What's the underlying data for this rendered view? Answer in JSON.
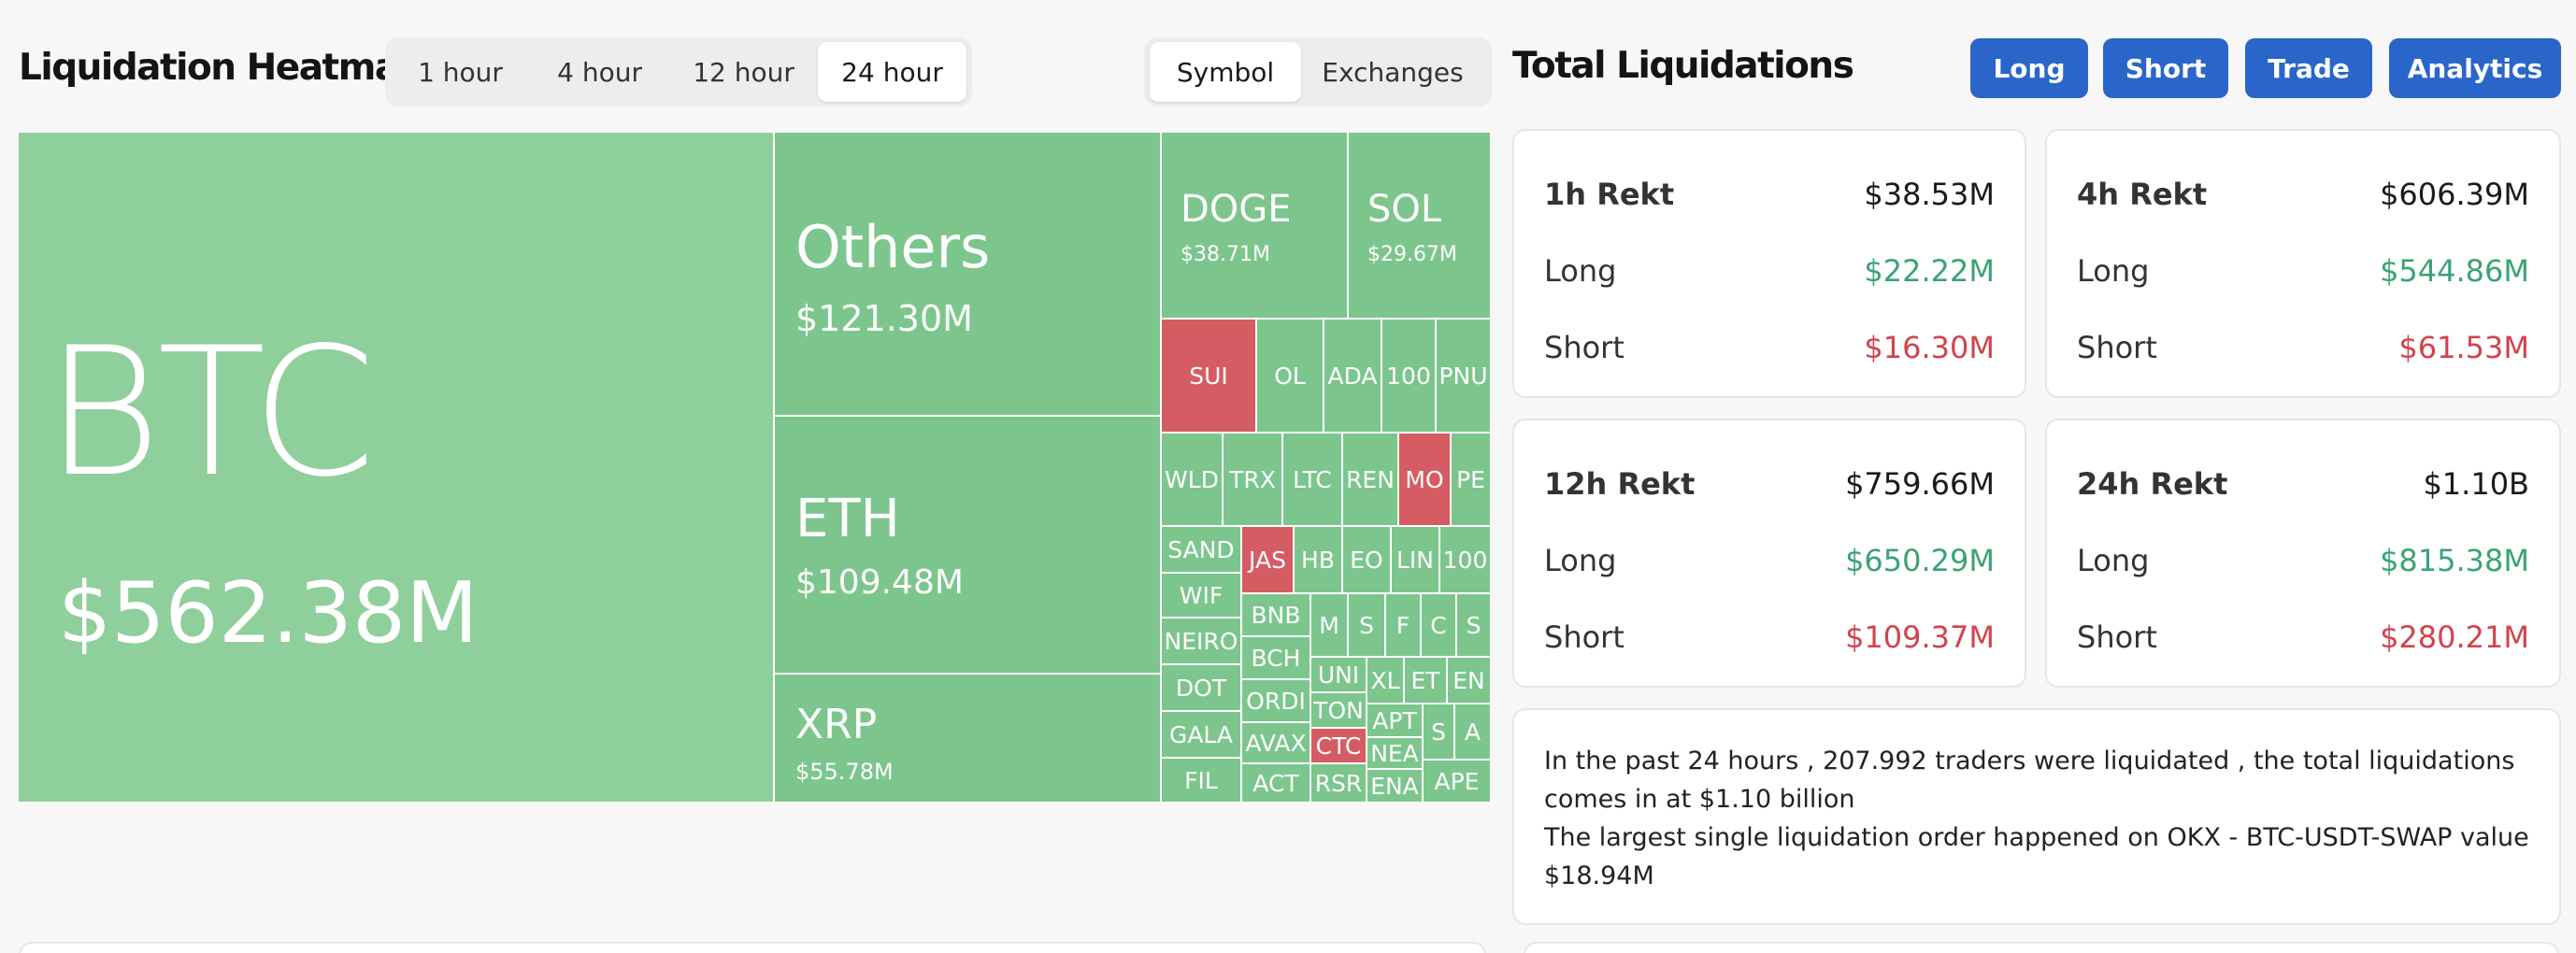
{
  "heatmap": {
    "title": "Liquidation Heatmap",
    "time_tabs": [
      "1 hour",
      "4 hour",
      "12 hour",
      "24 hour"
    ],
    "active_time_tab": "24 hour",
    "view_tabs": [
      "Symbol",
      "Exchanges"
    ],
    "active_view_tab": "Symbol",
    "big_tiles": [
      {
        "symbol": "BTC",
        "value": "$562.38M",
        "side": "long"
      },
      {
        "symbol": "Others",
        "value": "$121.30M",
        "side": "long"
      },
      {
        "symbol": "ETH",
        "value": "$109.48M",
        "side": "long"
      },
      {
        "symbol": "XRP",
        "value": "$55.78M",
        "side": "long"
      },
      {
        "symbol": "DOGE",
        "value": "$38.71M",
        "side": "long"
      },
      {
        "symbol": "SOL",
        "value": "$29.67M",
        "side": "long"
      }
    ],
    "small_tiles": [
      {
        "symbol": "SUI",
        "side": "short"
      },
      {
        "symbol": "OL",
        "side": "long"
      },
      {
        "symbol": "ADA",
        "side": "long"
      },
      {
        "symbol": "100",
        "side": "long"
      },
      {
        "symbol": "PNU",
        "side": "long"
      },
      {
        "symbol": "WLD",
        "side": "long"
      },
      {
        "symbol": "TRX",
        "side": "long"
      },
      {
        "symbol": "LTC",
        "side": "long"
      },
      {
        "symbol": "REN",
        "side": "long"
      },
      {
        "symbol": "MO",
        "side": "short"
      },
      {
        "symbol": "PE",
        "side": "long"
      },
      {
        "symbol": "SAND",
        "side": "long"
      },
      {
        "symbol": "JAS",
        "side": "short"
      },
      {
        "symbol": "HB",
        "side": "long"
      },
      {
        "symbol": "EO",
        "side": "long"
      },
      {
        "symbol": "LIN",
        "side": "long"
      },
      {
        "symbol": "100",
        "side": "long"
      },
      {
        "symbol": "WIF",
        "side": "long"
      },
      {
        "symbol": "BNB",
        "side": "long"
      },
      {
        "symbol": "M",
        "side": "long"
      },
      {
        "symbol": "S",
        "side": "long"
      },
      {
        "symbol": "F",
        "side": "long"
      },
      {
        "symbol": "C",
        "side": "long"
      },
      {
        "symbol": "S",
        "side": "long"
      },
      {
        "symbol": "NEIRO",
        "side": "long"
      },
      {
        "symbol": "BCH",
        "side": "long"
      },
      {
        "symbol": "UNI",
        "side": "long"
      },
      {
        "symbol": "XL",
        "side": "long"
      },
      {
        "symbol": "ET",
        "side": "long"
      },
      {
        "symbol": "EN",
        "side": "long"
      },
      {
        "symbol": "DOT",
        "side": "long"
      },
      {
        "symbol": "ORDI",
        "side": "long"
      },
      {
        "symbol": "TON",
        "side": "long"
      },
      {
        "symbol": "APT",
        "side": "long"
      },
      {
        "symbol": "S",
        "side": "long"
      },
      {
        "symbol": "A",
        "side": "long"
      },
      {
        "symbol": "GALA",
        "side": "long"
      },
      {
        "symbol": "AVAX",
        "side": "long"
      },
      {
        "symbol": "CTC",
        "side": "short"
      },
      {
        "symbol": "NEA",
        "side": "long"
      },
      {
        "symbol": "FIL",
        "side": "long"
      },
      {
        "symbol": "ACT",
        "side": "long"
      },
      {
        "symbol": "RSR",
        "side": "long"
      },
      {
        "symbol": "ENA",
        "side": "long"
      },
      {
        "symbol": "APE",
        "side": "long"
      }
    ]
  },
  "totals": {
    "title": "Total Liquidations",
    "buttons": [
      "Long",
      "Short",
      "Trade",
      "Analytics"
    ],
    "cards": [
      {
        "label": "1h Rekt",
        "total": "$38.53M",
        "long_label": "Long",
        "long": "$22.22M",
        "short_label": "Short",
        "short": "$16.30M"
      },
      {
        "label": "4h Rekt",
        "total": "$606.39M",
        "long_label": "Long",
        "long": "$544.86M",
        "short_label": "Short",
        "short": "$61.53M"
      },
      {
        "label": "12h Rekt",
        "total": "$759.66M",
        "long_label": "Long",
        "long": "$650.29M",
        "short_label": "Short",
        "short": "$109.37M"
      },
      {
        "label": "24h Rekt",
        "total": "$1.10B",
        "long_label": "Long",
        "long": "$815.38M",
        "short_label": "Short",
        "short": "$280.21M"
      }
    ],
    "summary_line1": "In the past 24 hours , 207.992 traders were liquidated , the total liquidations comes in at $1.10 billion",
    "summary_line2": "The largest single liquidation order happened on OKX - BTC-USDT-SWAP value $18.94M"
  },
  "colors": {
    "long_tile": "#7cc68d",
    "btc_tile": "#8fcf9c",
    "short_tile": "#d65c63",
    "button": "#2a66c9",
    "long_text": "#3ba374",
    "short_text": "#d2434b"
  }
}
